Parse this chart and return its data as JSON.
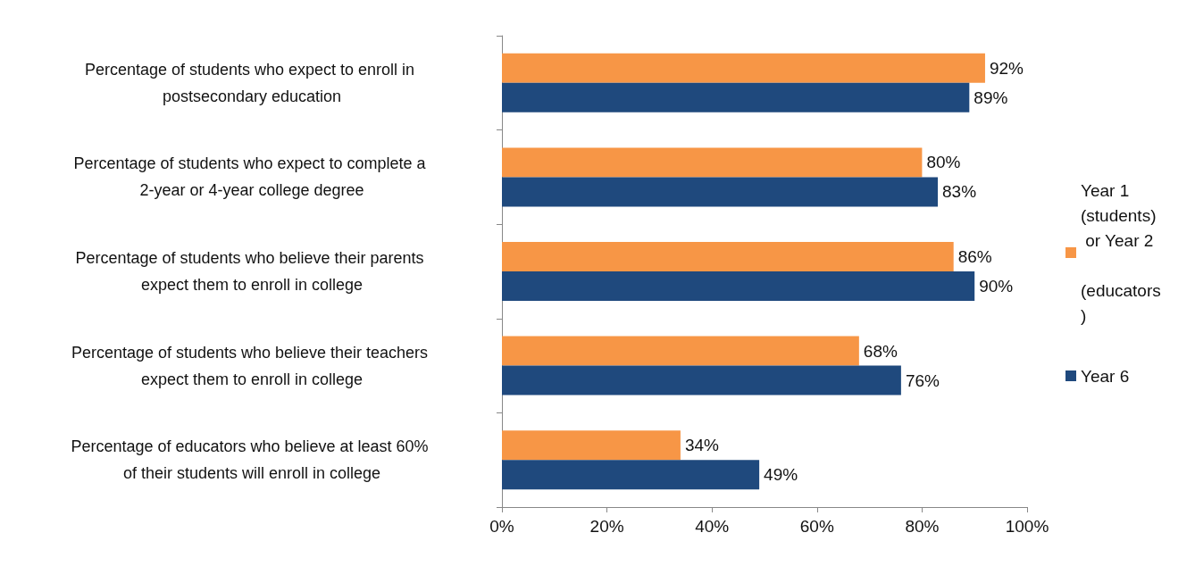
{
  "chart_data": {
    "type": "bar",
    "orientation": "horizontal",
    "categories": [
      "Percentage of students who expect to enroll in postsecondary education",
      "Percentage of students who expect to complete a 2-year or 4-year college degree",
      "Percentage of students who believe their parents expect them to enroll in college",
      "Percentage of students who believe their teachers expect them to enroll in college",
      "Percentage of educators who believe at least 60% of their students will enroll in college"
    ],
    "series": [
      {
        "name": "Year 1 (students) or Year 2 (educators)",
        "color": "#f79646",
        "values": [
          92,
          80,
          86,
          68,
          34
        ],
        "value_labels": [
          "92%",
          "80%",
          "86%",
          "68%",
          "34%"
        ]
      },
      {
        "name": "Year 6",
        "color": "#1f497d",
        "values": [
          89,
          83,
          90,
          76,
          49
        ],
        "value_labels": [
          "89%",
          "83%",
          "90%",
          "76%",
          "49%"
        ]
      }
    ],
    "xlim": [
      0,
      100
    ],
    "xticks": [
      {
        "value": 0,
        "label": "0%"
      },
      {
        "value": 20,
        "label": "20%"
      },
      {
        "value": 40,
        "label": "40%"
      },
      {
        "value": 60,
        "label": "60%"
      },
      {
        "value": 80,
        "label": "80%"
      },
      {
        "value": 100,
        "label": "100%"
      }
    ],
    "grid": false,
    "legend": "right"
  }
}
